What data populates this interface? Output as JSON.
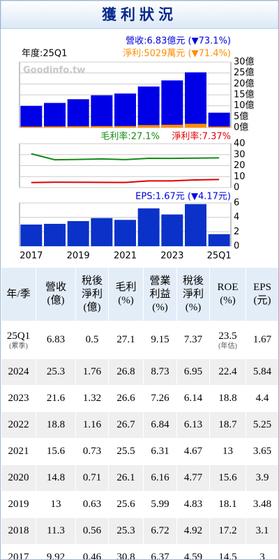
{
  "header": {
    "title": "獲利狀況"
  },
  "chart_data": [
    {
      "type": "bar",
      "watermark": "Goodinfo.tw",
      "annotations": [
        {
          "text": "年度:25Q1",
          "color": "#000000"
        },
        {
          "text": "營收:6.83億元 (▼73.1%)",
          "color": "#0000dd"
        },
        {
          "text": "淨利:5029萬元 (▼71.4%)",
          "color": "#ff8c00"
        }
      ],
      "series": [
        {
          "color": "#0000e6",
          "values": [
            9.92,
            11.3,
            13,
            14.8,
            15.6,
            18.8,
            21.6,
            25.3,
            6.83
          ]
        },
        {
          "color": "#ff8c00",
          "values": [
            0.46,
            0.56,
            0.63,
            0.71,
            0.73,
            1.16,
            1.32,
            1.76,
            0.5
          ]
        }
      ],
      "ylim": [
        0,
        30
      ],
      "yticks": [
        {
          "value": 0,
          "label": "0億"
        },
        {
          "value": 5,
          "label": "5億"
        },
        {
          "value": 10,
          "label": "10億"
        },
        {
          "value": 15,
          "label": "15億"
        },
        {
          "value": 20,
          "label": "20億"
        },
        {
          "value": 25,
          "label": "25億"
        },
        {
          "value": 30,
          "label": "30億"
        }
      ],
      "grid": true
    },
    {
      "type": "line",
      "annotations": [
        {
          "text": "毛利率:27.1%",
          "color": "#138a13"
        },
        {
          "text": "淨利率:7.37%",
          "color": "#e00000"
        }
      ],
      "series": [
        {
          "color": "#138a13",
          "values": [
            30.8,
            25.3,
            25.6,
            26.1,
            25.5,
            26.7,
            26.6,
            26.8,
            27.1
          ]
        },
        {
          "color": "#e00000",
          "values": [
            4.59,
            4.92,
            4.83,
            4.77,
            4.67,
            6.13,
            6.14,
            6.95,
            7.37
          ]
        }
      ],
      "ylim": [
        0,
        40
      ],
      "yticks": [
        0,
        10,
        20,
        30,
        40
      ],
      "grid": true
    },
    {
      "type": "bar",
      "annotations": [
        {
          "text": "EPS:1.67元 (▼4.17元)",
          "color": "#0000dd"
        }
      ],
      "categories": [
        "2017",
        null,
        "2019",
        null,
        "2021",
        null,
        "2023",
        null,
        "25Q1"
      ],
      "series": [
        {
          "color": "#0a32c8",
          "values": [
            3,
            3.1,
            3.48,
            3.9,
            3.65,
            5.25,
            4.4,
            5.84,
            1.67
          ]
        }
      ],
      "ylim": [
        0,
        6
      ],
      "yticks": [
        0,
        2,
        4,
        6
      ],
      "grid": true
    }
  ],
  "table": {
    "header": [
      [
        "年/季"
      ],
      [
        "營收",
        "(億)"
      ],
      [
        "稅後",
        "淨利",
        "(億)"
      ],
      [
        "毛利",
        "(%)"
      ],
      [
        "營業",
        "利益",
        "(%)"
      ],
      [
        "稅後",
        "淨利",
        "(%)"
      ],
      [
        "ROE",
        "(%)"
      ],
      [
        "EPS",
        "(元)"
      ]
    ],
    "rows": [
      [
        {
          "text": "25Q1",
          "note": "(累季)"
        },
        "6.83",
        "0.5",
        "27.1",
        "9.15",
        "7.37",
        {
          "text": "23.5",
          "note": "(年估)"
        },
        "1.67"
      ],
      [
        "2024",
        "25.3",
        "1.76",
        "26.8",
        "8.73",
        "6.95",
        "22.4",
        "5.84"
      ],
      [
        "2023",
        "21.6",
        "1.32",
        "26.6",
        "7.26",
        "6.14",
        "18.8",
        "4.4"
      ],
      [
        "2022",
        "18.8",
        "1.16",
        "26.7",
        "6.84",
        "6.13",
        "18.7",
        "5.25"
      ],
      [
        "2021",
        "15.6",
        "0.73",
        "25.5",
        "6.31",
        "4.67",
        "13",
        "3.65"
      ],
      [
        "2020",
        "14.8",
        "0.71",
        "26.1",
        "6.16",
        "4.77",
        "15.6",
        "3.9"
      ],
      [
        "2019",
        "13",
        "0.63",
        "25.6",
        "5.99",
        "4.83",
        "18.1",
        "3.48"
      ],
      [
        "2018",
        "11.3",
        "0.56",
        "25.3",
        "6.72",
        "4.92",
        "17.2",
        "3.1"
      ],
      [
        "2017",
        "9.92",
        "0.46",
        "30.8",
        "6.37",
        "4.59",
        "14.5",
        "3"
      ]
    ]
  }
}
